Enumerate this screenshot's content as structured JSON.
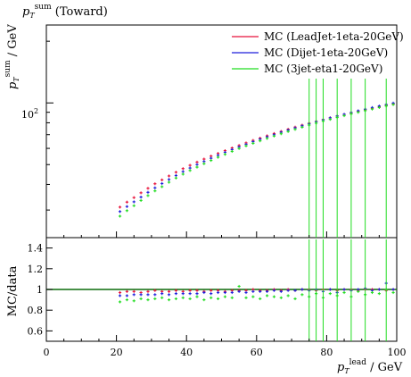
{
  "chart_data": [
    {
      "type": "scatter",
      "title": "p_T^sum (Toward)",
      "title_parts": {
        "p": "p",
        "sub": "T",
        "sup": "sum",
        "rest": " (Toward)"
      },
      "ylabel_parts": {
        "p": "p",
        "sub": "T",
        "sup": "sum",
        "rest": " / GeV"
      },
      "yscale": "log",
      "xlim": [
        0,
        100
      ],
      "ylim": [
        22,
        240
      ],
      "yticks": [
        {
          "value": 100,
          "label": "10",
          "exp": "2"
        }
      ],
      "legend_position": "top-right",
      "series": [
        {
          "name": "MC (LeadJet-1eta-20GeV)",
          "color": "#e8123a",
          "x": [
            20,
            22,
            24,
            26,
            28,
            30,
            32,
            34,
            36,
            38,
            40,
            42,
            44,
            46,
            48,
            50,
            52,
            54,
            56,
            58,
            60,
            62,
            64,
            66,
            68,
            70,
            72,
            74,
            76,
            78,
            80,
            82,
            84,
            86,
            88,
            90,
            92,
            94,
            96,
            98
          ],
          "y": [
            31,
            32.8,
            34.5,
            36.4,
            38.3,
            40.3,
            42.1,
            44,
            45.9,
            47.8,
            49.6,
            51.4,
            53.2,
            55,
            56.7,
            58.5,
            60.3,
            62,
            63.8,
            65.6,
            67.3,
            69.1,
            70.9,
            72.6,
            74.4,
            76.2,
            77.9,
            79.6,
            81.3,
            83,
            84.6,
            86.3,
            87.9,
            89.5,
            91.1,
            92.7,
            94.2,
            95.7,
            97.2,
            98.6
          ]
        },
        {
          "name": "MC (Dijet-1eta-20GeV)",
          "color": "#1f1fdc",
          "x": [
            20,
            22,
            24,
            26,
            28,
            30,
            32,
            34,
            36,
            38,
            40,
            42,
            44,
            46,
            48,
            50,
            52,
            54,
            56,
            58,
            60,
            62,
            64,
            66,
            68,
            70,
            72,
            74,
            76,
            78,
            80,
            82,
            84,
            86,
            88,
            90,
            92,
            94,
            96,
            98
          ],
          "y": [
            29.5,
            31.2,
            32.9,
            34.7,
            36.6,
            38.5,
            40.4,
            42.3,
            44.2,
            46.2,
            48.1,
            50,
            51.8,
            53.7,
            55.5,
            57.4,
            59.2,
            61,
            62.8,
            64.7,
            66.5,
            68.3,
            70,
            71.9,
            73.7,
            75.5,
            77.3,
            79.1,
            81,
            82.7,
            84.5,
            86.3,
            88,
            89.8,
            91.5,
            93.2,
            94.9,
            96.6,
            98.2,
            99.8
          ]
        },
        {
          "name": "MC (3jet-eta1-20GeV)",
          "color": "#22dd22",
          "x": [
            20,
            22,
            24,
            26,
            28,
            30,
            32,
            34,
            36,
            38,
            40,
            42,
            44,
            46,
            48,
            50,
            52,
            54,
            56,
            58,
            60,
            62,
            64,
            66,
            68,
            70,
            72,
            74,
            76,
            78,
            80,
            82,
            84,
            86,
            88,
            90,
            92,
            94,
            96,
            98
          ],
          "y": [
            28,
            29.8,
            31.5,
            33.4,
            35.3,
            37.2,
            39,
            41,
            43,
            44.9,
            46.8,
            48.6,
            50.5,
            52.4,
            54.3,
            56.1,
            58,
            59.9,
            61.7,
            63.5,
            65.3,
            67.1,
            68.9,
            70.7,
            72.5,
            74.3,
            76.1,
            77.9,
            79.6,
            81.4,
            83.1,
            84.9,
            86.6,
            88.3,
            90,
            91.6,
            93.3,
            94.9,
            96.6,
            98.2
          ]
        }
      ]
    },
    {
      "type": "scatter",
      "ylabel": "MC/data",
      "xlabel_parts": {
        "p": "p",
        "sub": "T",
        "sup": "lead",
        "rest": " / GeV"
      },
      "xlim": [
        0,
        100
      ],
      "ylim": [
        0.5,
        1.5
      ],
      "xticks": [
        0,
        20,
        40,
        60,
        80,
        100
      ],
      "yticks": [
        0.6,
        0.8,
        1,
        1.2,
        1.4
      ],
      "reference_line": 1.0,
      "series": [
        {
          "name": "MC (LeadJet-1eta-20GeV)",
          "color": "#e8123a",
          "x": [
            20,
            22,
            24,
            26,
            28,
            30,
            32,
            34,
            36,
            38,
            40,
            42,
            44,
            46,
            48,
            50,
            52,
            54,
            56,
            58,
            60,
            62,
            64,
            66,
            68,
            70,
            72,
            74,
            76,
            78,
            80,
            82,
            84,
            86,
            88,
            90,
            92,
            94,
            96,
            98
          ],
          "y": [
            0.97,
            0.98,
            0.98,
            0.97,
            0.98,
            0.99,
            0.98,
            0.98,
            0.99,
            0.98,
            0.99,
            0.99,
            0.98,
            0.99,
            0.99,
            0.98,
            0.99,
            0.99,
            0.99,
            1.0,
            0.99,
            0.99,
            1.0,
            0.99,
            1.0,
            0.99,
            1.0,
            1.0,
            0.99,
            1.0,
            1.0,
            0.99,
            1.0,
            1.0,
            0.99,
            1.0,
            1.0,
            1.0,
            0.99,
            1.0
          ]
        },
        {
          "name": "MC (Dijet-1eta-20GeV)",
          "color": "#1f1fdc",
          "x": [
            20,
            22,
            24,
            26,
            28,
            30,
            32,
            34,
            36,
            38,
            40,
            42,
            44,
            46,
            48,
            50,
            52,
            54,
            56,
            58,
            60,
            62,
            64,
            66,
            68,
            70,
            72,
            74,
            76,
            78,
            80,
            82,
            84,
            86,
            88,
            90,
            92,
            94,
            96,
            98
          ],
          "y": [
            0.94,
            0.94,
            0.95,
            0.95,
            0.95,
            0.95,
            0.96,
            0.95,
            0.96,
            0.96,
            0.96,
            0.96,
            0.97,
            0.96,
            0.97,
            0.97,
            0.97,
            0.98,
            0.97,
            0.98,
            0.98,
            0.98,
            0.99,
            0.98,
            0.99,
            0.99,
            1.0,
            0.99,
            1.0,
            0.98,
            1.0,
            0.97,
            1.0,
            0.99,
            1.0,
            1.01,
            0.99,
            1.0,
            1.06,
            1.0
          ]
        },
        {
          "name": "MC (3jet-eta1-20GeV)",
          "color": "#22dd22",
          "x": [
            20,
            22,
            24,
            26,
            28,
            30,
            32,
            34,
            36,
            38,
            40,
            42,
            44,
            46,
            48,
            50,
            52,
            54,
            56,
            58,
            60,
            62,
            64,
            66,
            68,
            70,
            72,
            74,
            76,
            78,
            80,
            82,
            84,
            86,
            88,
            90,
            92,
            94,
            96,
            98
          ],
          "y": [
            0.88,
            0.9,
            0.89,
            0.91,
            0.9,
            0.91,
            0.92,
            0.9,
            0.91,
            0.92,
            0.91,
            0.93,
            0.9,
            0.92,
            0.91,
            0.93,
            0.92,
            1.03,
            0.92,
            0.93,
            0.91,
            0.94,
            0.93,
            0.92,
            0.94,
            0.91,
            0.95,
            0.93,
            0.96,
            0.92,
            0.96,
            0.94,
            0.97,
            0.93,
            0.98,
            0.95,
            0.97,
            0.96,
            1.0,
            0.97
          ]
        }
      ]
    }
  ]
}
